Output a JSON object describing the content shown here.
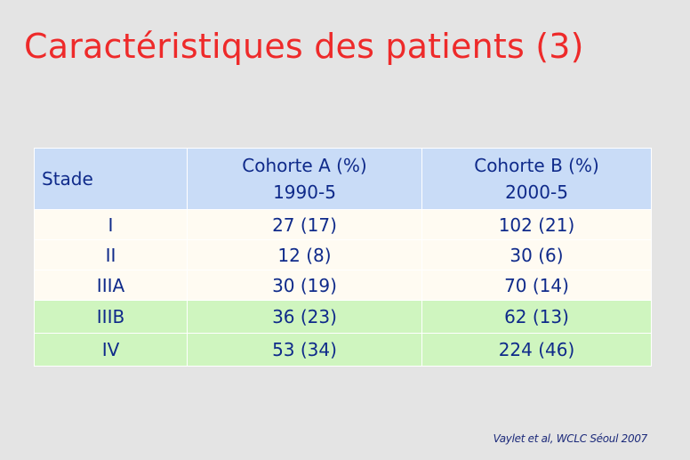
{
  "title": "Caractéristiques des patients (3)",
  "table": {
    "headers": {
      "stade": "Stade",
      "cohort_a_line1": "Cohorte A (%)",
      "cohort_a_line2": "1990-5",
      "cohort_b_line1": "Cohorte B (%)",
      "cohort_b_line2": "2000-5"
    },
    "rows": [
      {
        "stage": "I",
        "cohort_a": "27 (17)",
        "cohort_b": "102 (21)"
      },
      {
        "stage": "II",
        "cohort_a": "12 (8)",
        "cohort_b": "30 (6)"
      },
      {
        "stage": "IIIA",
        "cohort_a": "30 (19)",
        "cohort_b": "70 (14)"
      },
      {
        "stage": "IIIB",
        "cohort_a": "36 (23)",
        "cohort_b": "62 (13)"
      },
      {
        "stage": "IV",
        "cohort_a": "53 (34)",
        "cohort_b": "224 (46)"
      }
    ]
  },
  "source": "Vaylet et al, WCLC Séoul 2007",
  "colors": {
    "title": "#ee2a2a",
    "text": "#0f2a8a",
    "header_bg": "#c9dcf7",
    "row_bg": "#fffbf2",
    "highlight_row_bg": "#cff5bf",
    "background": "#e4e4e4"
  }
}
